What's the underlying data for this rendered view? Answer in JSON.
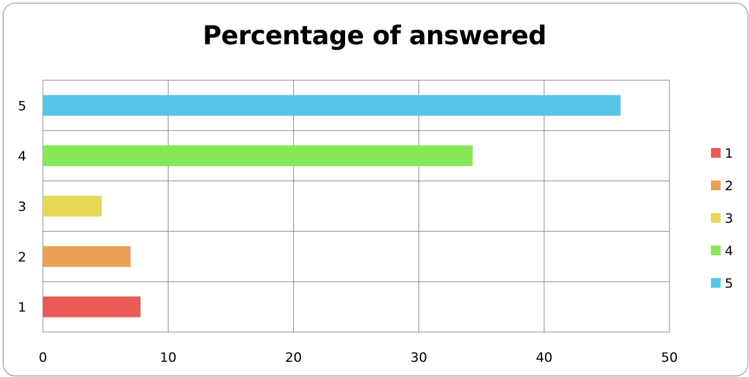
{
  "chart_data": {
    "type": "bar",
    "orientation": "horizontal",
    "title": "Percentage of answered",
    "xlabel": "",
    "ylabel": "",
    "xlim": [
      0,
      50
    ],
    "x_ticks": [
      0,
      10,
      20,
      30,
      40,
      50
    ],
    "grid": true,
    "legend_position": "right",
    "categories": [
      "1",
      "2",
      "3",
      "4",
      "5"
    ],
    "values": [
      7.8,
      7.0,
      4.7,
      34.3,
      46.1
    ],
    "colors": [
      "#e85b57",
      "#e8a057",
      "#e6d957",
      "#86e857",
      "#57c5e6"
    ]
  }
}
